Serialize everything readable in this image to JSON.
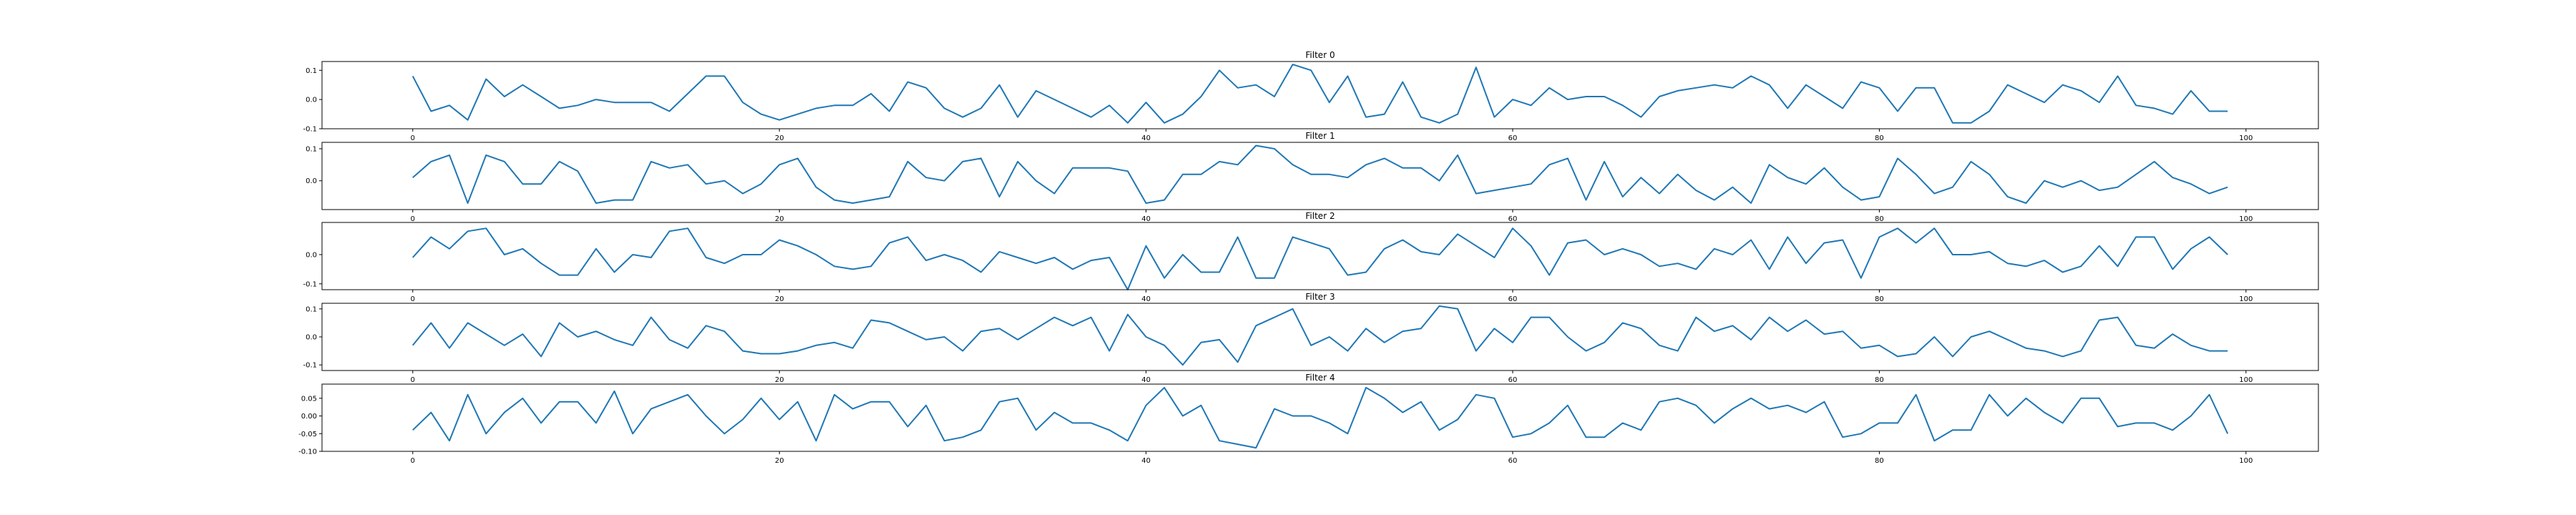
{
  "chart_data": [
    {
      "type": "line",
      "title": "Filter 0",
      "xlabel": "",
      "ylabel": "",
      "xlim": [
        -4.95,
        103.95
      ],
      "ylim": [
        -0.1,
        0.13
      ],
      "xticks": [
        0,
        20,
        40,
        60,
        80,
        100
      ],
      "yticks": [
        -0.1,
        0.0,
        0.1
      ],
      "ytick_labels": [
        "-0.1",
        "0.0",
        "0.1"
      ],
      "grid": false,
      "color": "#1f77b4",
      "x": [
        0,
        1,
        2,
        3,
        4,
        5,
        6,
        7,
        8,
        9,
        10,
        11,
        12,
        13,
        14,
        15,
        16,
        17,
        18,
        19,
        20,
        21,
        22,
        23,
        24,
        25,
        26,
        27,
        28,
        29,
        30,
        31,
        32,
        33,
        34,
        35,
        36,
        37,
        38,
        39,
        40,
        41,
        42,
        43,
        44,
        45,
        46,
        47,
        48,
        49,
        50,
        51,
        52,
        53,
        54,
        55,
        56,
        57,
        58,
        59,
        60,
        61,
        62,
        63,
        64,
        65,
        66,
        67,
        68,
        69,
        70,
        71,
        72,
        73,
        74,
        75,
        76,
        77,
        78,
        79,
        80,
        81,
        82,
        83,
        84,
        85,
        86,
        87,
        88,
        89,
        90,
        91,
        92,
        93,
        94,
        95,
        96,
        97,
        98,
        99
      ],
      "values": [
        0.08,
        -0.04,
        -0.02,
        -0.07,
        0.07,
        0.01,
        0.05,
        0.01,
        -0.03,
        -0.02,
        0.0,
        -0.01,
        -0.01,
        -0.01,
        -0.04,
        0.02,
        0.08,
        0.08,
        -0.01,
        -0.05,
        -0.07,
        -0.05,
        -0.03,
        -0.02,
        -0.02,
        0.02,
        -0.04,
        0.06,
        0.04,
        -0.03,
        -0.06,
        -0.03,
        0.05,
        -0.06,
        0.03,
        0.0,
        -0.03,
        -0.06,
        -0.02,
        -0.08,
        -0.01,
        -0.08,
        -0.05,
        0.01,
        0.1,
        0.04,
        0.05,
        0.01,
        0.12,
        0.1,
        -0.01,
        0.08,
        -0.06,
        -0.05,
        0.06,
        -0.06,
        -0.08,
        -0.05,
        0.11,
        -0.06,
        0.0,
        -0.02,
        0.04,
        0.0,
        0.01,
        0.01,
        -0.02,
        -0.06,
        0.01,
        0.03,
        0.04,
        0.05,
        0.04,
        0.08,
        0.05,
        -0.03,
        0.05,
        0.01,
        -0.03,
        0.06,
        0.04,
        -0.04,
        0.04,
        0.04,
        -0.08,
        -0.08,
        -0.04,
        0.05,
        0.02,
        -0.01,
        0.05,
        0.03,
        -0.01,
        0.08,
        -0.02,
        -0.03,
        -0.05,
        0.03,
        -0.04,
        -0.04
      ]
    },
    {
      "type": "line",
      "title": "Filter 1",
      "xlabel": "",
      "ylabel": "",
      "xlim": [
        -4.95,
        103.95
      ],
      "ylim": [
        -0.09,
        0.12
      ],
      "xticks": [
        0,
        20,
        40,
        60,
        80,
        100
      ],
      "yticks": [
        0.0,
        0.1
      ],
      "ytick_labels": [
        "0.0",
        "0.1"
      ],
      "grid": false,
      "color": "#1f77b4",
      "x": [
        0,
        1,
        2,
        3,
        4,
        5,
        6,
        7,
        8,
        9,
        10,
        11,
        12,
        13,
        14,
        15,
        16,
        17,
        18,
        19,
        20,
        21,
        22,
        23,
        24,
        25,
        26,
        27,
        28,
        29,
        30,
        31,
        32,
        33,
        34,
        35,
        36,
        37,
        38,
        39,
        40,
        41,
        42,
        43,
        44,
        45,
        46,
        47,
        48,
        49,
        50,
        51,
        52,
        53,
        54,
        55,
        56,
        57,
        58,
        59,
        60,
        61,
        62,
        63,
        64,
        65,
        66,
        67,
        68,
        69,
        70,
        71,
        72,
        73,
        74,
        75,
        76,
        77,
        78,
        79,
        80,
        81,
        82,
        83,
        84,
        85,
        86,
        87,
        88,
        89,
        90,
        91,
        92,
        93,
        94,
        95,
        96,
        97,
        98,
        99
      ],
      "values": [
        0.01,
        0.06,
        0.08,
        -0.07,
        0.08,
        0.06,
        -0.01,
        -0.01,
        0.06,
        0.03,
        -0.07,
        -0.06,
        -0.06,
        0.06,
        0.04,
        0.05,
        -0.01,
        0.0,
        -0.04,
        -0.01,
        0.05,
        0.07,
        -0.02,
        -0.06,
        -0.07,
        -0.06,
        -0.05,
        0.06,
        0.01,
        0.0,
        0.06,
        0.07,
        -0.05,
        0.06,
        0.0,
        -0.04,
        0.04,
        0.04,
        0.04,
        0.03,
        -0.07,
        -0.06,
        0.02,
        0.02,
        0.06,
        0.05,
        0.11,
        0.1,
        0.05,
        0.02,
        0.02,
        0.01,
        0.05,
        0.07,
        0.04,
        0.04,
        0.0,
        0.08,
        -0.04,
        -0.03,
        -0.02,
        -0.01,
        0.05,
        0.07,
        -0.06,
        0.06,
        -0.05,
        0.01,
        -0.04,
        0.02,
        -0.03,
        -0.06,
        -0.02,
        -0.07,
        0.05,
        0.01,
        -0.01,
        0.04,
        -0.02,
        -0.06,
        -0.05,
        0.07,
        0.02,
        -0.04,
        -0.02,
        0.06,
        0.02,
        -0.05,
        -0.07,
        0.0,
        -0.02,
        0.0,
        -0.03,
        -0.02,
        0.02,
        0.06,
        0.01,
        -0.01,
        -0.04,
        -0.02
      ]
    },
    {
      "type": "line",
      "title": "Filter 2",
      "xlabel": "",
      "ylabel": "",
      "xlim": [
        -4.95,
        103.95
      ],
      "ylim": [
        -0.12,
        0.11
      ],
      "xticks": [
        0,
        20,
        40,
        60,
        80,
        100
      ],
      "yticks": [
        -0.1,
        0.0
      ],
      "ytick_labels": [
        "-0.1",
        "0.0"
      ],
      "grid": false,
      "color": "#1f77b4",
      "x": [
        0,
        1,
        2,
        3,
        4,
        5,
        6,
        7,
        8,
        9,
        10,
        11,
        12,
        13,
        14,
        15,
        16,
        17,
        18,
        19,
        20,
        21,
        22,
        23,
        24,
        25,
        26,
        27,
        28,
        29,
        30,
        31,
        32,
        33,
        34,
        35,
        36,
        37,
        38,
        39,
        40,
        41,
        42,
        43,
        44,
        45,
        46,
        47,
        48,
        49,
        50,
        51,
        52,
        53,
        54,
        55,
        56,
        57,
        58,
        59,
        60,
        61,
        62,
        63,
        64,
        65,
        66,
        67,
        68,
        69,
        70,
        71,
        72,
        73,
        74,
        75,
        76,
        77,
        78,
        79,
        80,
        81,
        82,
        83,
        84,
        85,
        86,
        87,
        88,
        89,
        90,
        91,
        92,
        93,
        94,
        95,
        96,
        97,
        98,
        99
      ],
      "values": [
        -0.01,
        0.06,
        0.02,
        0.08,
        0.09,
        0.0,
        0.02,
        -0.03,
        -0.07,
        -0.07,
        0.02,
        -0.06,
        0.0,
        -0.01,
        0.08,
        0.09,
        -0.01,
        -0.03,
        0.0,
        0.0,
        0.05,
        0.03,
        0.0,
        -0.04,
        -0.05,
        -0.04,
        0.04,
        0.06,
        -0.02,
        0.0,
        -0.02,
        -0.06,
        0.01,
        -0.01,
        -0.03,
        -0.01,
        -0.05,
        -0.02,
        -0.01,
        -0.12,
        0.03,
        -0.08,
        0.0,
        -0.06,
        -0.06,
        0.06,
        -0.08,
        -0.08,
        0.06,
        0.04,
        0.02,
        -0.07,
        -0.06,
        0.02,
        0.05,
        0.01,
        0.0,
        0.07,
        0.03,
        -0.01,
        0.09,
        0.03,
        -0.07,
        0.04,
        0.05,
        0.0,
        0.02,
        0.0,
        -0.04,
        -0.03,
        -0.05,
        0.02,
        0.0,
        0.05,
        -0.05,
        0.06,
        -0.03,
        0.04,
        0.05,
        -0.08,
        0.06,
        0.09,
        0.04,
        0.09,
        0.0,
        0.0,
        0.01,
        -0.03,
        -0.04,
        -0.02,
        -0.06,
        -0.04,
        0.03,
        -0.04,
        0.06,
        0.06,
        -0.05,
        0.02,
        0.06,
        0.0
      ]
    },
    {
      "type": "line",
      "title": "Filter 3",
      "xlabel": "",
      "ylabel": "",
      "xlim": [
        -4.95,
        103.95
      ],
      "ylim": [
        -0.12,
        0.12
      ],
      "xticks": [
        0,
        20,
        40,
        60,
        80,
        100
      ],
      "yticks": [
        -0.1,
        0.0,
        0.1
      ],
      "ytick_labels": [
        "-0.1",
        "0.0",
        "0.1"
      ],
      "grid": false,
      "color": "#1f77b4",
      "x": [
        0,
        1,
        2,
        3,
        4,
        5,
        6,
        7,
        8,
        9,
        10,
        11,
        12,
        13,
        14,
        15,
        16,
        17,
        18,
        19,
        20,
        21,
        22,
        23,
        24,
        25,
        26,
        27,
        28,
        29,
        30,
        31,
        32,
        33,
        34,
        35,
        36,
        37,
        38,
        39,
        40,
        41,
        42,
        43,
        44,
        45,
        46,
        47,
        48,
        49,
        50,
        51,
        52,
        53,
        54,
        55,
        56,
        57,
        58,
        59,
        60,
        61,
        62,
        63,
        64,
        65,
        66,
        67,
        68,
        69,
        70,
        71,
        72,
        73,
        74,
        75,
        76,
        77,
        78,
        79,
        80,
        81,
        82,
        83,
        84,
        85,
        86,
        87,
        88,
        89,
        90,
        91,
        92,
        93,
        94,
        95,
        96,
        97,
        98,
        99
      ],
      "values": [
        -0.03,
        0.05,
        -0.04,
        0.05,
        0.01,
        -0.03,
        0.01,
        -0.07,
        0.05,
        0.0,
        0.02,
        -0.01,
        -0.03,
        0.07,
        -0.01,
        -0.04,
        0.04,
        0.02,
        -0.05,
        -0.06,
        -0.06,
        -0.05,
        -0.03,
        -0.02,
        -0.04,
        0.06,
        0.05,
        0.02,
        -0.01,
        0.0,
        -0.05,
        0.02,
        0.03,
        -0.01,
        0.03,
        0.07,
        0.04,
        0.07,
        -0.05,
        0.08,
        0.0,
        -0.03,
        -0.1,
        -0.02,
        -0.01,
        -0.09,
        0.04,
        0.07,
        0.1,
        -0.03,
        0.0,
        -0.05,
        0.03,
        -0.02,
        0.02,
        0.03,
        0.11,
        0.1,
        -0.05,
        0.03,
        -0.02,
        0.07,
        0.07,
        0.0,
        -0.05,
        -0.02,
        0.05,
        0.03,
        -0.03,
        -0.05,
        0.07,
        0.02,
        0.04,
        -0.01,
        0.07,
        0.02,
        0.06,
        0.01,
        0.02,
        -0.04,
        -0.03,
        -0.07,
        -0.06,
        0.0,
        -0.07,
        0.0,
        0.02,
        -0.01,
        -0.04,
        -0.05,
        -0.07,
        -0.05,
        0.06,
        0.07,
        -0.03,
        -0.04,
        0.01,
        -0.03,
        -0.05,
        -0.05
      ]
    },
    {
      "type": "line",
      "title": "Filter 4",
      "xlabel": "",
      "ylabel": "",
      "xlim": [
        -4.95,
        103.95
      ],
      "ylim": [
        -0.1,
        0.09
      ],
      "xticks": [
        0,
        20,
        40,
        60,
        80,
        100
      ],
      "yticks": [
        -0.1,
        -0.05,
        0.0,
        0.05
      ],
      "ytick_labels": [
        "-0.10",
        "-0.05",
        "0.00",
        "0.05"
      ],
      "grid": false,
      "color": "#1f77b4",
      "x": [
        0,
        1,
        2,
        3,
        4,
        5,
        6,
        7,
        8,
        9,
        10,
        11,
        12,
        13,
        14,
        15,
        16,
        17,
        18,
        19,
        20,
        21,
        22,
        23,
        24,
        25,
        26,
        27,
        28,
        29,
        30,
        31,
        32,
        33,
        34,
        35,
        36,
        37,
        38,
        39,
        40,
        41,
        42,
        43,
        44,
        45,
        46,
        47,
        48,
        49,
        50,
        51,
        52,
        53,
        54,
        55,
        56,
        57,
        58,
        59,
        60,
        61,
        62,
        63,
        64,
        65,
        66,
        67,
        68,
        69,
        70,
        71,
        72,
        73,
        74,
        75,
        76,
        77,
        78,
        79,
        80,
        81,
        82,
        83,
        84,
        85,
        86,
        87,
        88,
        89,
        90,
        91,
        92,
        93,
        94,
        95,
        96,
        97,
        98,
        99
      ],
      "values": [
        -0.04,
        0.01,
        -0.07,
        0.06,
        -0.05,
        0.01,
        0.05,
        -0.02,
        0.04,
        0.04,
        -0.02,
        0.07,
        -0.05,
        0.02,
        0.04,
        0.06,
        0.0,
        -0.05,
        -0.01,
        0.05,
        -0.01,
        0.04,
        -0.07,
        0.06,
        0.02,
        0.04,
        0.04,
        -0.03,
        0.03,
        -0.07,
        -0.06,
        -0.04,
        0.04,
        0.05,
        -0.04,
        0.01,
        -0.02,
        -0.02,
        -0.04,
        -0.07,
        0.03,
        0.08,
        0.0,
        0.03,
        -0.07,
        -0.08,
        -0.09,
        0.02,
        0.0,
        0.0,
        -0.02,
        -0.05,
        0.08,
        0.05,
        0.01,
        0.04,
        -0.04,
        -0.01,
        0.06,
        0.05,
        -0.06,
        -0.05,
        -0.02,
        0.03,
        -0.06,
        -0.06,
        -0.02,
        -0.04,
        0.04,
        0.05,
        0.03,
        -0.02,
        0.02,
        0.05,
        0.02,
        0.03,
        0.01,
        0.04,
        -0.06,
        -0.05,
        -0.02,
        -0.02,
        0.06,
        -0.07,
        -0.04,
        -0.04,
        0.06,
        0.0,
        0.05,
        0.01,
        -0.02,
        0.05,
        0.05,
        -0.03,
        -0.02,
        -0.02,
        -0.04,
        0.0,
        0.06,
        -0.05
      ]
    }
  ]
}
